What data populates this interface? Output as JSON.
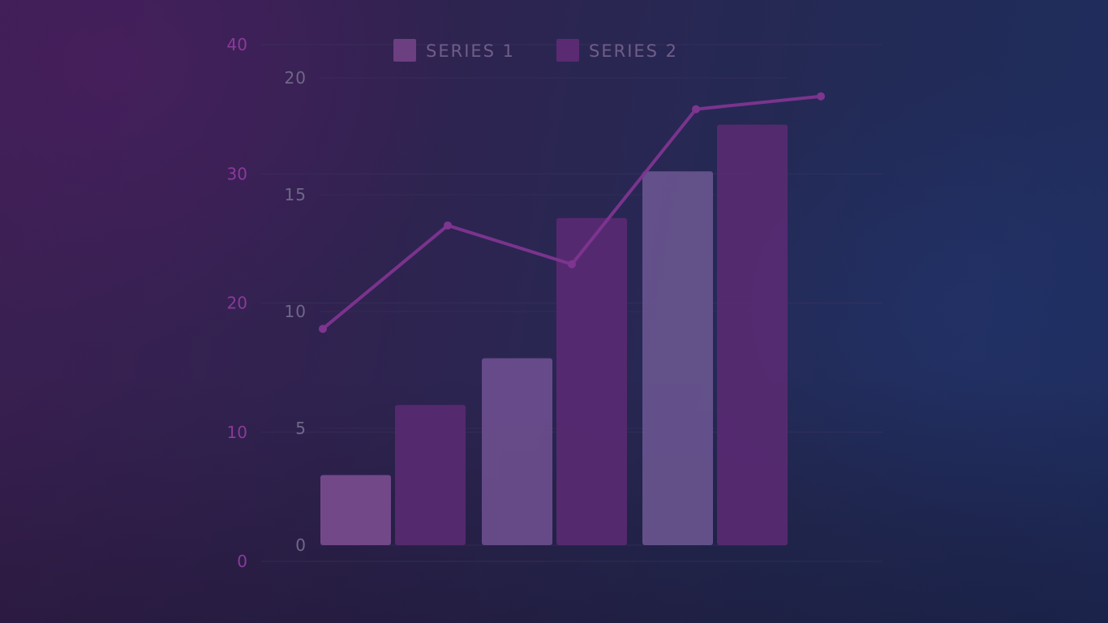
{
  "chart_data": {
    "type": "bar",
    "title": "",
    "xlabel": "",
    "ylabel": "",
    "legend": {
      "placement": "top",
      "entries": [
        "SERIES 1",
        "SERIES 2"
      ]
    },
    "grid": true,
    "y_ticks_left": [
      "0",
      "10",
      "20",
      "30",
      "40"
    ],
    "y_ticks_inner": [
      "0",
      "5",
      "10",
      "15",
      "20"
    ],
    "ylim_left": [
      0,
      40
    ],
    "ylim_inner": [
      0,
      20
    ],
    "bar_groups": 3,
    "series": [
      {
        "name": "SERIES 1",
        "values": [
          3,
          8,
          16
        ]
      },
      {
        "name": "SERIES 2",
        "values": [
          6,
          14,
          18
        ]
      }
    ],
    "line_series": {
      "values": [
        18,
        26,
        23,
        35,
        36
      ],
      "ylim": [
        0,
        40
      ]
    },
    "colors": {
      "series1": "#6b3f80",
      "series2": "#5a2a72",
      "line": "#7e3590",
      "grid": "#3d3660"
    }
  }
}
